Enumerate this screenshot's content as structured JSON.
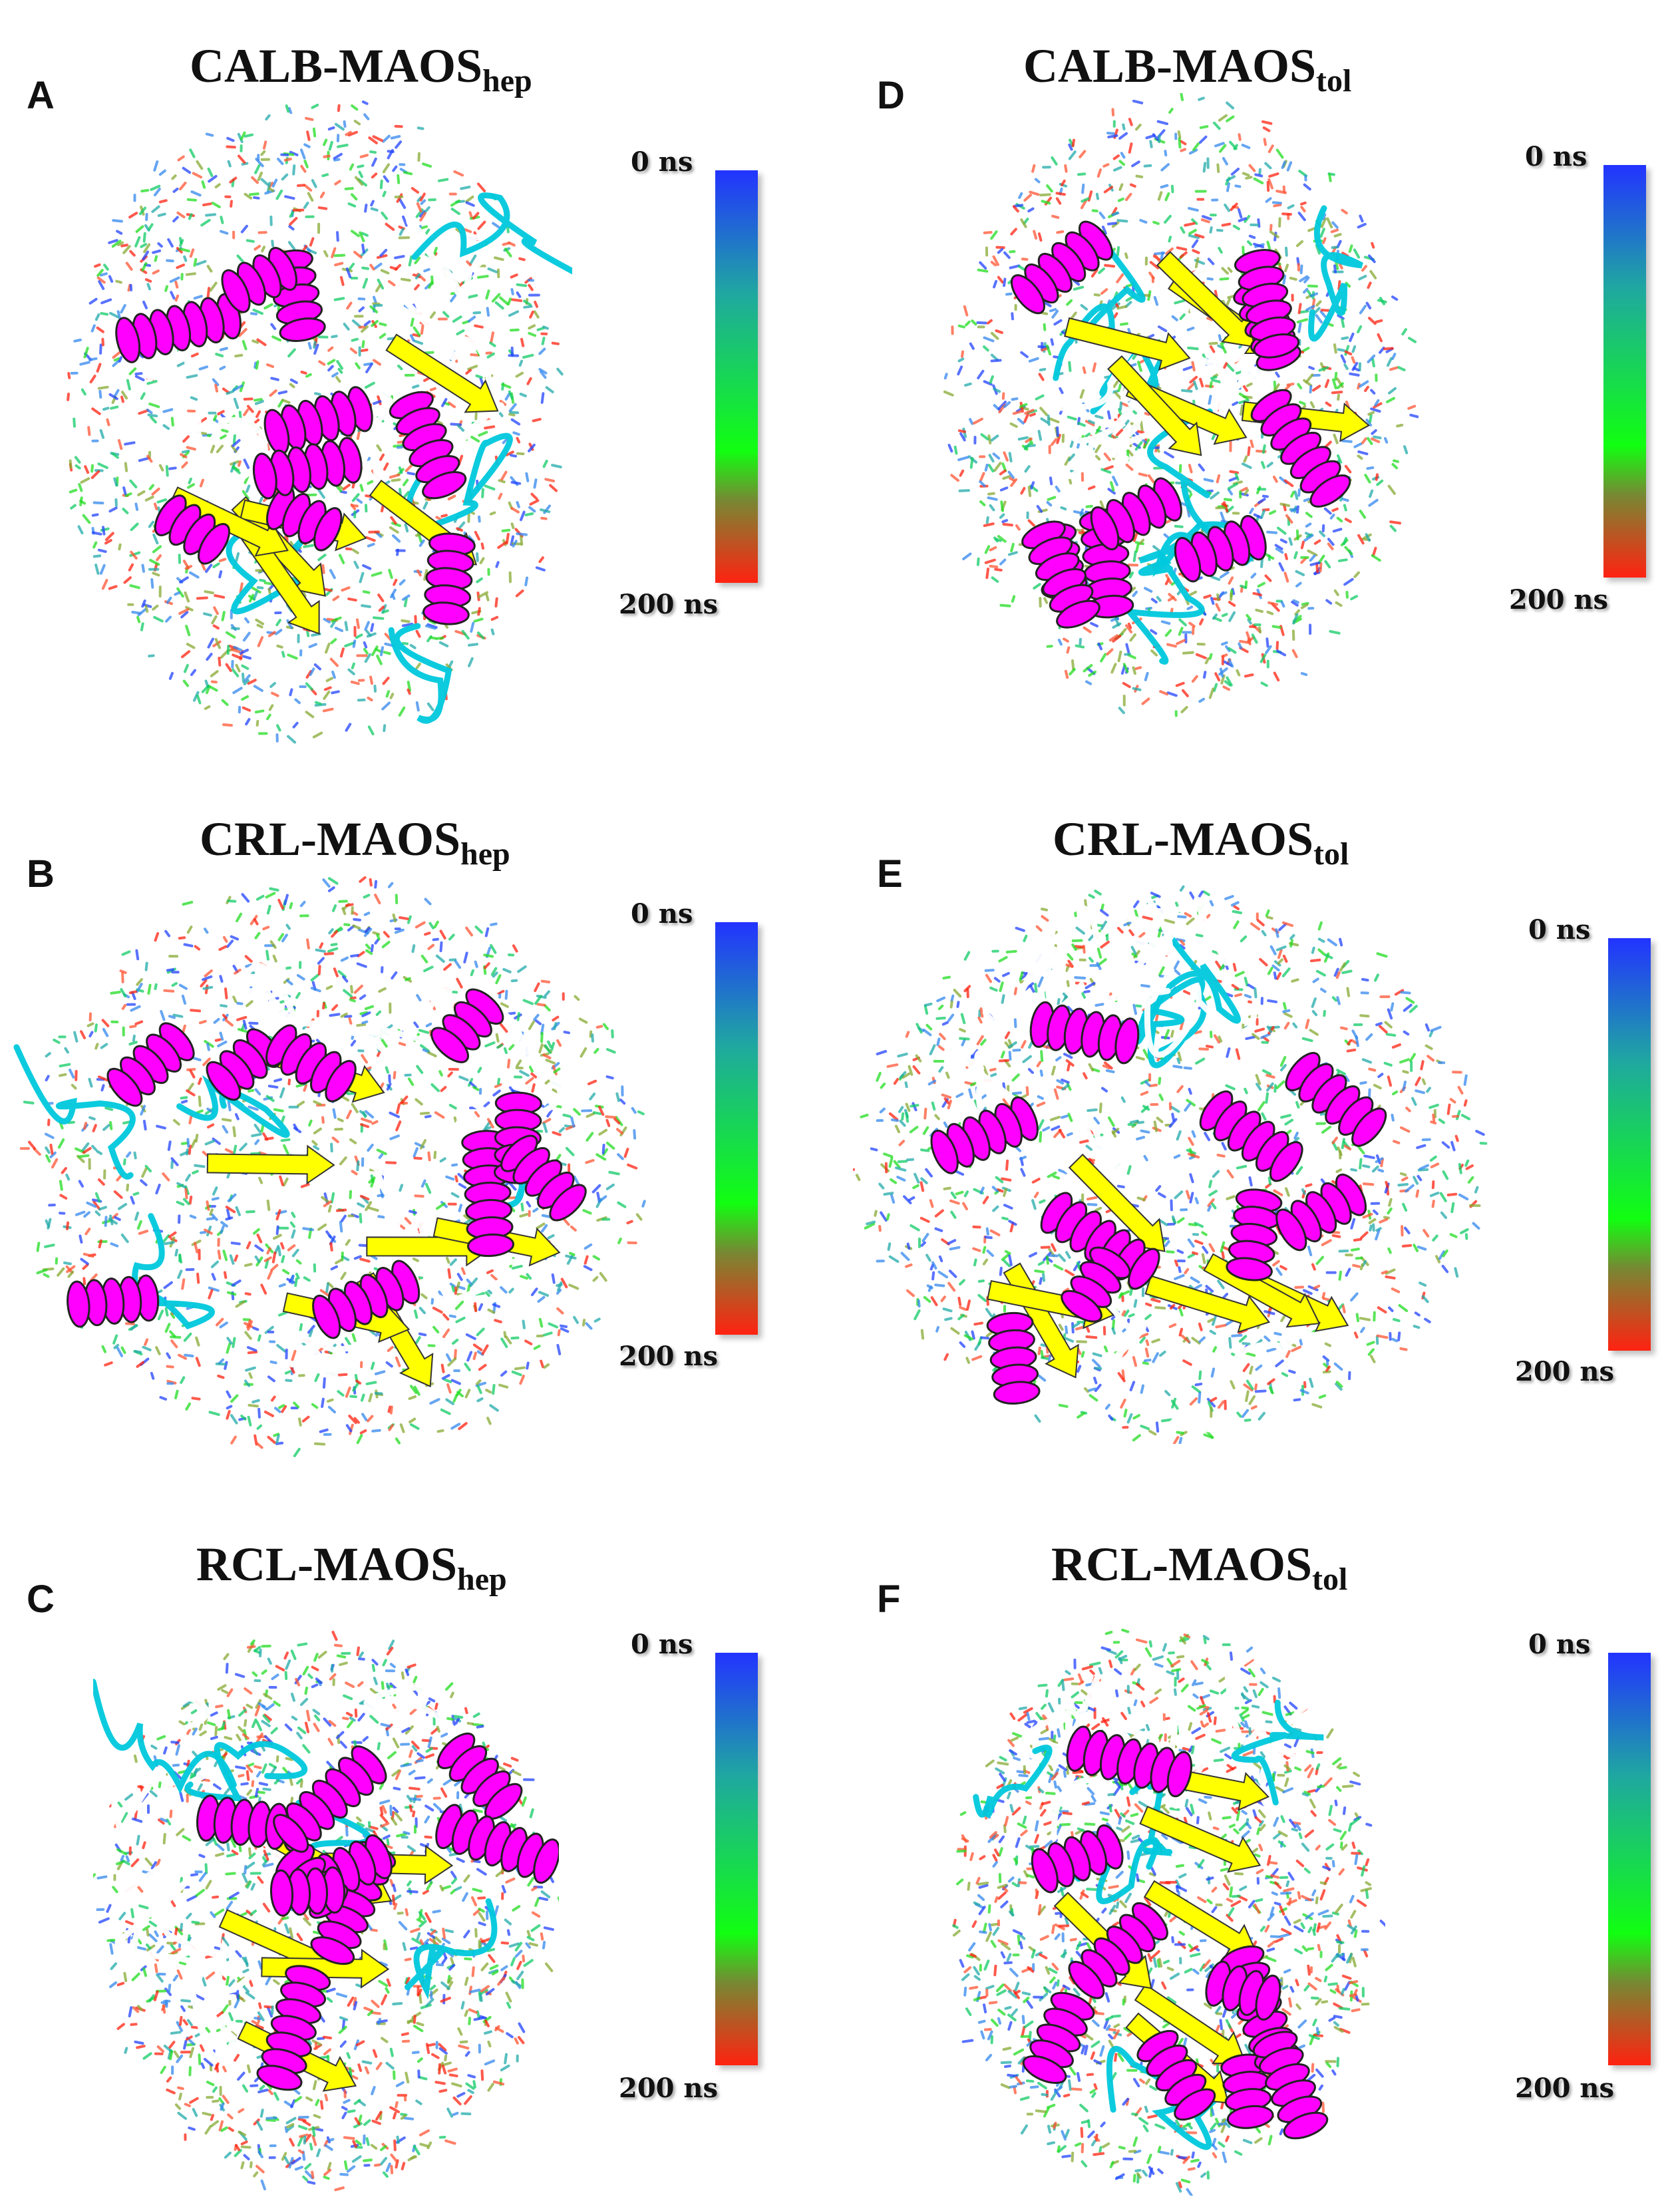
{
  "panels": [
    {
      "id": "A",
      "letter": "A",
      "title_main": "CALB-MAOS",
      "title_sub": "hep",
      "cb_top": "0 ns",
      "cb_bottom": "200 ns"
    },
    {
      "id": "D",
      "letter": "D",
      "title_main": "CALB-MAOS",
      "title_sub": "tol",
      "cb_top": "0 ns",
      "cb_bottom": "200 ns"
    },
    {
      "id": "B",
      "letter": "B",
      "title_main": "CRL-MAOS",
      "title_sub": "hep",
      "cb_top": "0 ns",
      "cb_bottom": "200 ns"
    },
    {
      "id": "E",
      "letter": "E",
      "title_main": "CRL-MAOS",
      "title_sub": "tol",
      "cb_top": "0 ns",
      "cb_bottom": "200 ns"
    },
    {
      "id": "C",
      "letter": "C",
      "title_main": "RCL-MAOS",
      "title_sub": "hep",
      "cb_top": "0 ns",
      "cb_bottom": "200 ns"
    },
    {
      "id": "F",
      "letter": "F",
      "title_main": "RCL-MAOS",
      "title_sub": "tol",
      "cb_top": "0 ns",
      "cb_bottom": "200 ns"
    }
  ],
  "colors": {
    "helix": "#ff00ff",
    "strand": "#ffff00",
    "coil": "#00c8dc",
    "turn": "#ffffff",
    "bar_top": "#2233ff",
    "bar_mid": "#11ff11",
    "bar_bottom": "#ff2211"
  }
}
